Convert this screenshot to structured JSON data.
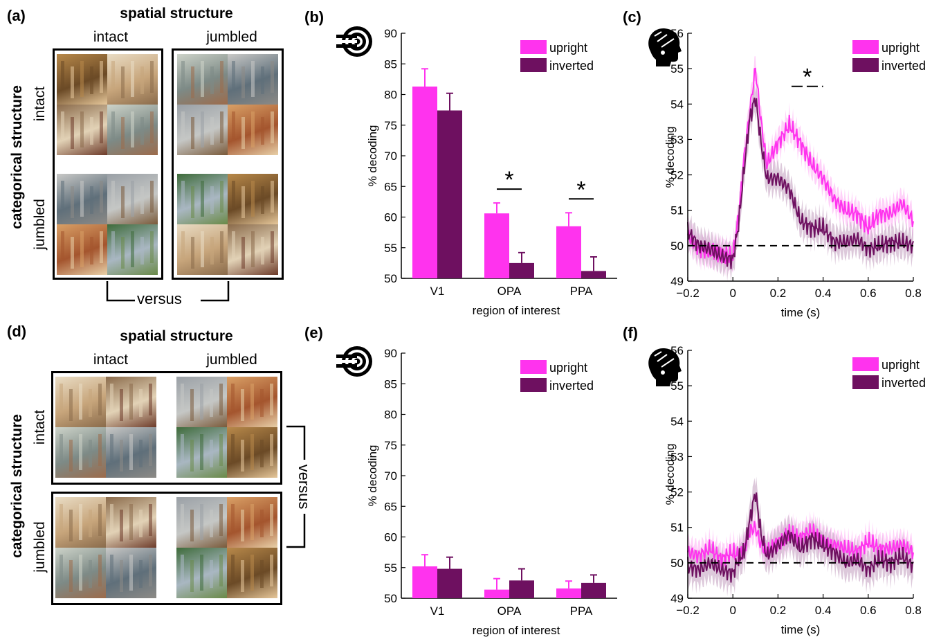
{
  "panels": {
    "a": "(a)",
    "b": "(b)",
    "c": "(c)",
    "d": "(d)",
    "e": "(e)",
    "f": "(f)"
  },
  "design": {
    "spatial_title": "spatial structure",
    "categorical_title": "categorical structure",
    "intact": "intact",
    "jumbled": "jumbled",
    "versus": "versus"
  },
  "icons": {
    "fmri": "fmri-target-icon",
    "eeg": "eeg-head-icon"
  },
  "colors": {
    "upright": "#ff33ee",
    "inverted": "#6e1060",
    "upright_band": "#ffb3f5",
    "inverted_band": "#c6a5c3"
  },
  "chart_data": [
    {
      "id": "b",
      "type": "bar",
      "categories": [
        "V1",
        "OPA",
        "PPA"
      ],
      "series": [
        {
          "name": "upright",
          "values": [
            81.3,
            60.6,
            58.5
          ],
          "errors": [
            2.9,
            1.7,
            2.2
          ]
        },
        {
          "name": "inverted",
          "values": [
            77.4,
            52.5,
            51.2
          ],
          "errors": [
            2.8,
            1.7,
            2.3
          ]
        }
      ],
      "xlabel": "region of interest",
      "ylabel": "% decoding",
      "ylim": [
        50,
        90
      ],
      "yticks": [
        50,
        55,
        60,
        65,
        70,
        75,
        80,
        85,
        90
      ],
      "legend": "top-right",
      "annotations": [
        {
          "text": "*",
          "category": "OPA"
        },
        {
          "text": "*",
          "category": "PPA"
        }
      ]
    },
    {
      "id": "c",
      "type": "line",
      "x": [
        -0.2,
        -0.15,
        -0.1,
        -0.05,
        0,
        0.025,
        0.05,
        0.075,
        0.1,
        0.125,
        0.15,
        0.2,
        0.25,
        0.3,
        0.35,
        0.4,
        0.45,
        0.5,
        0.55,
        0.6,
        0.65,
        0.7,
        0.75,
        0.8
      ],
      "series": [
        {
          "name": "upright",
          "values": [
            50.3,
            49.9,
            49.8,
            49.8,
            49.7,
            50.8,
            52.5,
            53.8,
            55.0,
            53.5,
            52.3,
            52.9,
            53.4,
            52.9,
            52.3,
            51.9,
            51.3,
            51.0,
            50.9,
            50.5,
            50.9,
            50.9,
            51.2,
            50.7
          ],
          "sem": 0.35
        },
        {
          "name": "inverted",
          "values": [
            50.4,
            50.0,
            49.9,
            49.7,
            49.6,
            50.6,
            52.2,
            53.6,
            54.2,
            52.9,
            51.9,
            51.9,
            51.6,
            50.7,
            50.5,
            50.5,
            50.1,
            50.1,
            50.2,
            49.9,
            50.0,
            50.1,
            50.1,
            50.0
          ],
          "sem": 0.4
        }
      ],
      "xlabel": "time (s)",
      "ylabel": "% decoding",
      "xlim": [
        -0.2,
        0.8
      ],
      "ylim": [
        49,
        56
      ],
      "xticks": [
        -0.2,
        0,
        0.2,
        0.4,
        0.6,
        0.8
      ],
      "xtick_labels": [
        "−0.2",
        "0",
        "0.2",
        "0.4",
        "0.6",
        "0.8"
      ],
      "yticks": [
        49,
        50,
        51,
        52,
        53,
        54,
        55,
        56
      ],
      "chance": 50,
      "legend": "top-right",
      "annotations": [
        {
          "text": "*",
          "x_range": [
            0.26,
            0.4
          ]
        }
      ]
    },
    {
      "id": "e",
      "type": "bar",
      "categories": [
        "V1",
        "OPA",
        "PPA"
      ],
      "series": [
        {
          "name": "upright",
          "values": [
            55.2,
            51.4,
            51.6
          ],
          "errors": [
            1.9,
            1.8,
            1.2
          ]
        },
        {
          "name": "inverted",
          "values": [
            54.8,
            52.9,
            52.5
          ],
          "errors": [
            1.9,
            1.9,
            1.3
          ]
        }
      ],
      "xlabel": "region of interest",
      "ylabel": "% decoding",
      "ylim": [
        50,
        90
      ],
      "yticks": [
        50,
        55,
        60,
        65,
        70,
        75,
        80,
        85,
        90
      ],
      "legend": "top-right"
    },
    {
      "id": "f",
      "type": "line",
      "x": [
        -0.2,
        -0.15,
        -0.1,
        -0.05,
        0,
        0.025,
        0.05,
        0.075,
        0.1,
        0.125,
        0.15,
        0.2,
        0.25,
        0.3,
        0.35,
        0.4,
        0.45,
        0.5,
        0.55,
        0.6,
        0.65,
        0.7,
        0.75,
        0.8
      ],
      "series": [
        {
          "name": "upright",
          "values": [
            50.3,
            50.2,
            50.4,
            50.1,
            50.3,
            50.2,
            50.4,
            50.9,
            51.0,
            50.5,
            50.3,
            50.6,
            50.8,
            50.7,
            50.9,
            50.6,
            50.5,
            50.4,
            50.3,
            50.6,
            50.4,
            50.4,
            50.5,
            50.3
          ],
          "sem": 0.35
        },
        {
          "name": "inverted",
          "values": [
            49.9,
            49.8,
            50.0,
            49.8,
            49.7,
            50.1,
            50.3,
            51.2,
            52.0,
            50.8,
            50.2,
            50.5,
            50.8,
            50.4,
            50.7,
            50.5,
            50.3,
            50.0,
            50.1,
            49.8,
            50.1,
            50.0,
            50.2,
            49.9
          ],
          "sem": 0.45
        }
      ],
      "xlabel": "time (s)",
      "ylabel": "% decoding",
      "xlim": [
        -0.2,
        0.8
      ],
      "ylim": [
        49,
        56
      ],
      "xticks": [
        -0.2,
        0,
        0.2,
        0.4,
        0.6,
        0.8
      ],
      "xtick_labels": [
        "−0.2",
        "0",
        "0.2",
        "0.4",
        "0.6",
        "0.8"
      ],
      "yticks": [
        49,
        50,
        51,
        52,
        53,
        54,
        55,
        56
      ],
      "chance": 50,
      "legend": "top-right"
    }
  ]
}
